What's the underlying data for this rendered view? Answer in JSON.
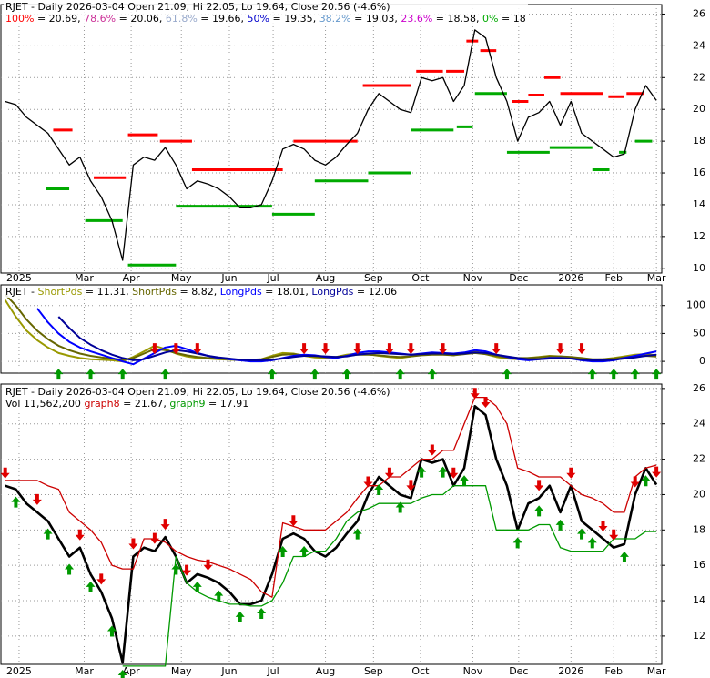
{
  "chart_data": [
    {
      "type": "line",
      "title": "RJET - Daily 2026-03-04 Open 21.09, Hi 22.05, Lo 19.64, Close 20.56 (-4.6%)",
      "levels_legend": [
        {
          "label": "100%",
          "value": 20.69,
          "color": "#ff0000"
        },
        {
          "label": "78.6%",
          "value": 20.06,
          "color": "#cc3399"
        },
        {
          "label": "61.8%",
          "value": 19.66,
          "color": "#99aacc"
        },
        {
          "label": "50%",
          "value": 19.35,
          "color": "#0000cc"
        },
        {
          "label": "38.2%",
          "value": 19.03,
          "color": "#6699cc"
        },
        {
          "label": "23.6%",
          "value": 18.58,
          "color": "#cc00cc"
        },
        {
          "label": "0%",
          "value": 18.0,
          "color": "#00aa00"
        }
      ],
      "xlim": [
        -0.4,
        61.5
      ],
      "xticks": [
        {
          "value": 1.3,
          "label": "2025"
        },
        {
          "value": 7.4,
          "label": "Mar"
        },
        {
          "value": 11.8,
          "label": "Apr"
        },
        {
          "value": 16.5,
          "label": "May"
        },
        {
          "value": 21,
          "label": "Jun"
        },
        {
          "value": 25.1,
          "label": "Jul"
        },
        {
          "value": 30,
          "label": "Aug"
        },
        {
          "value": 34.5,
          "label": "Sep"
        },
        {
          "value": 38.9,
          "label": "Oct"
        },
        {
          "value": 43.8,
          "label": "Nov"
        },
        {
          "value": 48.1,
          "label": "Dec"
        },
        {
          "value": 53,
          "label": "2026"
        },
        {
          "value": 57,
          "label": "Feb"
        },
        {
          "value": 61,
          "label": "Mar"
        }
      ],
      "ylim": [
        9.7,
        26.6
      ],
      "yticks": [
        10,
        12,
        14,
        16,
        18,
        20,
        22,
        24,
        26
      ],
      "grid": true,
      "series": [
        {
          "color": "#000000",
          "values": [
            20.5,
            20.3,
            19.5,
            19.0,
            18.5,
            17.5,
            16.5,
            17.0,
            15.5,
            14.5,
            13.0,
            10.5,
            16.5,
            17.0,
            16.8,
            17.6,
            16.5,
            15.0,
            15.5,
            15.3,
            15.0,
            14.5,
            13.8,
            13.8,
            14.0,
            15.5,
            17.5,
            17.8,
            17.5,
            16.8,
            16.5,
            17.0,
            17.8,
            18.5,
            20.0,
            21.0,
            20.5,
            20.0,
            19.8,
            22.0,
            21.8,
            22.0,
            20.5,
            21.5,
            25.0,
            24.5,
            22.0,
            20.5,
            18.0,
            19.5,
            19.8,
            20.5,
            19.0,
            20.5,
            18.5,
            18.0,
            17.5,
            17.0,
            17.2,
            20.0,
            21.5,
            20.56
          ]
        }
      ],
      "resistance_color": "#ff0000",
      "support_color": "#00aa00",
      "resistance": [
        {
          "x0": 4.5,
          "x1": 6.3,
          "value": 18.7
        },
        {
          "x0": 8.3,
          "x1": 11.3,
          "value": 15.7
        },
        {
          "x0": 11.5,
          "x1": 14.3,
          "value": 18.4
        },
        {
          "x0": 14.5,
          "x1": 17.5,
          "value": 18.0
        },
        {
          "x0": 17.5,
          "x1": 26,
          "value": 16.2
        },
        {
          "x0": 27,
          "x1": 33,
          "value": 18.0
        },
        {
          "x0": 33.5,
          "x1": 38,
          "value": 21.5
        },
        {
          "x0": 38.5,
          "x1": 41,
          "value": 22.4
        },
        {
          "x0": 41.3,
          "x1": 43,
          "value": 22.4
        },
        {
          "x0": 43.2,
          "x1": 44.3,
          "value": 24.3
        },
        {
          "x0": 44.5,
          "x1": 46,
          "value": 23.7
        },
        {
          "x0": 47.5,
          "x1": 49,
          "value": 20.5
        },
        {
          "x0": 49,
          "x1": 50.5,
          "value": 20.9
        },
        {
          "x0": 50.5,
          "x1": 52,
          "value": 22.0
        },
        {
          "x0": 52,
          "x1": 56,
          "value": 21.0
        },
        {
          "x0": 56.5,
          "x1": 58,
          "value": 20.8
        },
        {
          "x0": 58.2,
          "x1": 59.8,
          "value": 21.0
        }
      ],
      "support": [
        {
          "x0": 3.8,
          "x1": 6,
          "value": 15.0
        },
        {
          "x0": 7.5,
          "x1": 11,
          "value": 13.0
        },
        {
          "x0": 11.5,
          "x1": 16,
          "value": 10.2
        },
        {
          "x0": 16,
          "x1": 25,
          "value": 13.9
        },
        {
          "x0": 25,
          "x1": 29,
          "value": 13.4
        },
        {
          "x0": 29,
          "x1": 34,
          "value": 15.5
        },
        {
          "x0": 34,
          "x1": 38,
          "value": 16.0
        },
        {
          "x0": 38,
          "x1": 42,
          "value": 18.7
        },
        {
          "x0": 42.3,
          "x1": 43.8,
          "value": 18.9
        },
        {
          "x0": 44,
          "x1": 47,
          "value": 21.0
        },
        {
          "x0": 47,
          "x1": 51,
          "value": 17.3
        },
        {
          "x0": 51,
          "x1": 55,
          "value": 17.6
        },
        {
          "x0": 55,
          "x1": 56.6,
          "value": 16.2
        },
        {
          "x0": 57.5,
          "x1": 58.2,
          "value": 17.3
        },
        {
          "x0": 59,
          "x1": 60.6,
          "value": 18.0
        }
      ]
    },
    {
      "type": "line",
      "title": "RJET",
      "xlim": [
        -0.4,
        61.5
      ],
      "ylim": [
        -21,
        137
      ],
      "yticks": [
        0,
        50,
        100
      ],
      "grid": true,
      "series": [
        {
          "name": "ShortPds",
          "color": "#999900",
          "values": [
            110,
            80,
            55,
            38,
            25,
            15,
            10,
            6,
            4,
            3,
            2,
            0,
            8,
            18,
            28,
            22,
            14,
            9,
            6,
            5,
            4,
            3,
            2,
            2,
            4,
            10,
            15,
            14,
            10,
            7,
            6,
            8,
            12,
            14,
            13,
            10,
            8,
            6,
            9,
            12,
            14,
            13,
            11,
            15,
            18,
            13,
            8,
            5,
            4,
            6,
            8,
            10,
            9,
            7,
            4,
            3,
            4,
            6,
            9,
            12,
            13,
            11.31
          ]
        },
        {
          "name": "ShortPds",
          "color": "#666600",
          "values": [
            120,
            100,
            75,
            55,
            40,
            28,
            20,
            14,
            10,
            7,
            5,
            3,
            6,
            14,
            22,
            20,
            15,
            11,
            8,
            6,
            5,
            4,
            3,
            3,
            4,
            8,
            12,
            13,
            11,
            9,
            8,
            8,
            10,
            12,
            12,
            11,
            9,
            8,
            9,
            11,
            12,
            12,
            11,
            13,
            15,
            13,
            10,
            7,
            6,
            6,
            7,
            9,
            9,
            8,
            6,
            4,
            4,
            5,
            7,
            9,
            10,
            8.82
          ]
        },
        {
          "name": "LongPds",
          "color": "#0000ff",
          "values": [
            null,
            null,
            null,
            95,
            70,
            50,
            35,
            25,
            18,
            12,
            6,
            0,
            -5,
            5,
            15,
            25,
            28,
            22,
            15,
            10,
            6,
            4,
            2,
            0,
            0,
            2,
            6,
            10,
            12,
            11,
            8,
            6,
            10,
            15,
            18,
            18,
            16,
            14,
            12,
            14,
            16,
            15,
            14,
            16,
            20,
            18,
            12,
            8,
            4,
            2,
            4,
            6,
            6,
            5,
            2,
            0,
            0,
            2,
            6,
            10,
            14,
            18.01
          ]
        },
        {
          "name": "LongPds",
          "color": "#000099",
          "values": [
            null,
            null,
            null,
            null,
            null,
            80,
            60,
            42,
            30,
            20,
            12,
            6,
            2,
            4,
            10,
            16,
            20,
            18,
            14,
            10,
            7,
            5,
            3,
            2,
            2,
            3,
            5,
            8,
            10,
            10,
            9,
            8,
            9,
            12,
            14,
            15,
            14,
            13,
            12,
            13,
            14,
            14,
            13,
            14,
            16,
            15,
            12,
            9,
            6,
            4,
            4,
            5,
            5,
            5,
            3,
            2,
            2,
            3,
            5,
            7,
            10,
            12.06
          ]
        }
      ],
      "buy_signals": [
        5,
        8,
        11,
        15,
        25,
        29,
        32,
        37,
        40,
        47,
        55,
        57,
        59,
        61
      ],
      "sell_signals": [
        14,
        16,
        18,
        28,
        30,
        33,
        36,
        38,
        41,
        46,
        52,
        54
      ]
    },
    {
      "type": "line",
      "title": "RJET - Daily 2026-03-04 Open 21.09, Hi 22.05, Lo 19.64, Close 20.56 (-4.6%)",
      "volume_label": "Vol 11,562,200",
      "xlim": [
        -0.4,
        61.5
      ],
      "xticks": [
        {
          "value": 1.3,
          "label": "2025"
        },
        {
          "value": 7.4,
          "label": "Mar"
        },
        {
          "value": 11.8,
          "label": "Apr"
        },
        {
          "value": 16.5,
          "label": "May"
        },
        {
          "value": 21,
          "label": "Jun"
        },
        {
          "value": 25.1,
          "label": "Jul"
        },
        {
          "value": 30,
          "label": "Aug"
        },
        {
          "value": 34.5,
          "label": "Sep"
        },
        {
          "value": 38.9,
          "label": "Oct"
        },
        {
          "value": 43.8,
          "label": "Nov"
        },
        {
          "value": 48.1,
          "label": "Dec"
        },
        {
          "value": 53,
          "label": "2026"
        },
        {
          "value": 57,
          "label": "Feb"
        },
        {
          "value": 61,
          "label": "Mar"
        }
      ],
      "ylim": [
        10.4,
        26.25
      ],
      "yticks": [
        12,
        14,
        16,
        18,
        20,
        22,
        24,
        26
      ],
      "grid": true,
      "series": [
        {
          "color": "#000000",
          "values": [
            20.5,
            20.3,
            19.5,
            19.0,
            18.5,
            17.5,
            16.5,
            17.0,
            15.5,
            14.5,
            13.0,
            10.5,
            16.5,
            17.0,
            16.8,
            17.6,
            16.5,
            15.0,
            15.5,
            15.3,
            15.0,
            14.5,
            13.8,
            13.8,
            14.0,
            15.5,
            17.5,
            17.8,
            17.5,
            16.8,
            16.5,
            17.0,
            17.8,
            18.5,
            20.0,
            21.0,
            20.5,
            20.0,
            19.8,
            22.0,
            21.8,
            22.0,
            20.5,
            21.5,
            25.0,
            24.5,
            22.0,
            20.5,
            18.0,
            19.5,
            19.8,
            20.5,
            19.0,
            20.5,
            18.5,
            18.0,
            17.5,
            17.0,
            17.2,
            20.0,
            21.5,
            20.56
          ]
        },
        {
          "name": "graph8",
          "color": "#cc0000",
          "values": [
            20.8,
            20.8,
            20.8,
            20.8,
            20.5,
            20.3,
            19.0,
            18.5,
            18.0,
            17.3,
            16.0,
            15.8,
            15.8,
            17.5,
            17.5,
            17.3,
            16.8,
            16.5,
            16.3,
            16.2,
            16.0,
            15.8,
            15.5,
            15.2,
            14.5,
            14.2,
            18.4,
            18.2,
            18.0,
            18.0,
            18.0,
            18.5,
            19.0,
            19.8,
            20.5,
            20.5,
            21.0,
            21.0,
            21.5,
            22.0,
            22.0,
            22.5,
            22.5,
            24.0,
            25.5,
            25.5,
            25.0,
            24.0,
            21.5,
            21.3,
            21.0,
            21.0,
            21.0,
            20.5,
            20.0,
            19.8,
            19.5,
            19.0,
            19.0,
            21.0,
            21.5,
            21.67
          ]
        },
        {
          "name": "graph9",
          "color": "#009900",
          "values": [
            null,
            null,
            null,
            null,
            null,
            null,
            null,
            null,
            null,
            null,
            null,
            10.3,
            10.3,
            10.3,
            10.3,
            10.3,
            16.5,
            15.0,
            14.5,
            14.2,
            14.0,
            13.8,
            13.8,
            13.7,
            13.7,
            14.0,
            15.0,
            16.5,
            16.5,
            16.8,
            16.8,
            17.5,
            18.5,
            19.0,
            19.2,
            19.5,
            19.5,
            19.5,
            19.5,
            19.8,
            20.0,
            20.0,
            20.5,
            20.5,
            20.5,
            20.5,
            18.0,
            18.0,
            18.0,
            18.0,
            18.3,
            18.3,
            17.0,
            16.8,
            16.8,
            16.8,
            16.8,
            17.5,
            17.5,
            17.5,
            17.91,
            17.91
          ]
        }
      ],
      "buy_signals": [
        1,
        4,
        6,
        8,
        10,
        11,
        16,
        18,
        20,
        22,
        24,
        26,
        28,
        33,
        35,
        37,
        39,
        41,
        43,
        48,
        50,
        52,
        54,
        55,
        58,
        60
      ],
      "sell_signals": [
        0,
        3,
        7,
        9,
        12,
        14,
        15,
        17,
        19,
        27,
        34,
        36,
        38,
        40,
        42,
        44,
        45,
        50,
        53,
        56,
        57,
        59,
        61
      ]
    }
  ]
}
